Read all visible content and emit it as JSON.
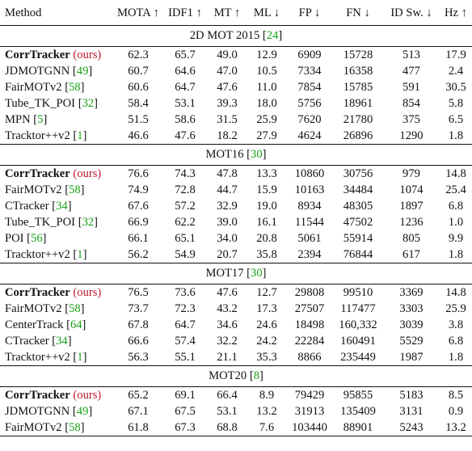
{
  "columns": [
    "Method",
    "MOTA ↑",
    "IDF1 ↑",
    "MT ↑",
    "ML ↓",
    "FP ↓",
    "FN ↓",
    "ID Sw. ↓",
    "Hz ↑"
  ],
  "sections": [
    {
      "title": "2D MOT 2015",
      "ref": "24",
      "rows": [
        {
          "method": "CorrTracker",
          "method_bold": true,
          "suffix": "(ours)",
          "values": [
            "62.3",
            "65.7",
            "49.0",
            "12.9",
            "6909",
            "15728",
            "513",
            "17.9"
          ],
          "bold": [
            0,
            1,
            2,
            5
          ]
        },
        {
          "method": "JDMOTGNN",
          "ref": "49",
          "values": [
            "60.7",
            "64.6",
            "47.0",
            "10.5",
            "7334",
            "16358",
            "477",
            "2.4"
          ],
          "bold": [
            3
          ]
        },
        {
          "method": "FairMOTv2",
          "ref": "58",
          "values": [
            "60.6",
            "64.7",
            "47.6",
            "11.0",
            "7854",
            "15785",
            "591",
            "30.5"
          ],
          "bold": [
            7
          ]
        },
        {
          "method": "Tube_TK_POI",
          "ref": "32",
          "values": [
            "58.4",
            "53.1",
            "39.3",
            "18.0",
            "5756",
            "18961",
            "854",
            "5.8"
          ],
          "bold": []
        },
        {
          "method": "MPN",
          "ref": "5",
          "values": [
            "51.5",
            "58.6",
            "31.5",
            "25.9",
            "7620",
            "21780",
            "375",
            "6.5"
          ],
          "bold": [
            6
          ]
        },
        {
          "method": "Tracktor++v2",
          "ref": "1",
          "values": [
            "46.6",
            "47.6",
            "18.2",
            "27.9",
            "4624",
            "26896",
            "1290",
            "1.8"
          ],
          "bold": [
            4
          ]
        }
      ]
    },
    {
      "title": "MOT16",
      "ref": "30",
      "rows": [
        {
          "method": "CorrTracker",
          "method_bold": true,
          "suffix": "(ours)",
          "values": [
            "76.6",
            "74.3",
            "47.8",
            "13.3",
            "10860",
            "30756",
            "979",
            "14.8"
          ],
          "bold": [
            0,
            1,
            2,
            3,
            5
          ]
        },
        {
          "method": "FairMOTv2",
          "ref": "58",
          "values": [
            "74.9",
            "72.8",
            "44.7",
            "15.9",
            "10163",
            "34484",
            "1074",
            "25.4"
          ],
          "bold": [
            7
          ]
        },
        {
          "method": "CTracker",
          "ref": "34",
          "values": [
            "67.6",
            "57.2",
            "32.9",
            "19.0",
            "8934",
            "48305",
            "1897",
            "6.8"
          ],
          "bold": []
        },
        {
          "method": "Tube_TK_POI",
          "ref": "32",
          "values": [
            "66.9",
            "62.2",
            "39.0",
            "16.1",
            "11544",
            "47502",
            "1236",
            "1.0"
          ],
          "bold": []
        },
        {
          "method": "POI",
          "ref": "56",
          "values": [
            "66.1",
            "65.1",
            "34.0",
            "20.8",
            "5061",
            "55914",
            "805",
            "9.9"
          ],
          "bold": []
        },
        {
          "method": "Tracktor++v2",
          "ref": "1",
          "values": [
            "56.2",
            "54.9",
            "20.7",
            "35.8",
            "2394",
            "76844",
            "617",
            "1.8"
          ],
          "bold": [
            4,
            6
          ]
        }
      ]
    },
    {
      "title": "MOT17",
      "ref": "30",
      "rows": [
        {
          "method": "CorrTracker",
          "method_bold": true,
          "suffix": "(ours)",
          "values": [
            "76.5",
            "73.6",
            "47.6",
            "12.7",
            "29808",
            "99510",
            "3369",
            "14.8"
          ],
          "bold": [
            0,
            1,
            2,
            3,
            5
          ]
        },
        {
          "method": "FairMOTv2",
          "ref": "58",
          "values": [
            "73.7",
            "72.3",
            "43.2",
            "17.3",
            "27507",
            "117477",
            "3303",
            "25.9"
          ],
          "bold": [
            7
          ]
        },
        {
          "method": "CenterTrack",
          "ref": "64",
          "values": [
            "67.8",
            "64.7",
            "34.6",
            "24.6",
            "18498",
            "160,332",
            "3039",
            "3.8"
          ],
          "bold": []
        },
        {
          "method": "CTracker",
          "ref": "34",
          "values": [
            "66.6",
            "57.4",
            "32.2",
            "24.2",
            "22284",
            "160491",
            "5529",
            "6.8"
          ],
          "bold": []
        },
        {
          "method": "Tracktor++v2",
          "ref": "1",
          "values": [
            "56.3",
            "55.1",
            "21.1",
            "35.3",
            "8866",
            "235449",
            "1987",
            "1.8"
          ],
          "bold": [
            4,
            6
          ]
        }
      ]
    },
    {
      "title": "MOT20",
      "ref": "8",
      "rows": [
        {
          "method": "CorrTracker",
          "method_bold": true,
          "suffix": "(ours)",
          "values": [
            "65.2",
            "69.1",
            "66.4",
            "8.9",
            "79429",
            "95855",
            "5183",
            "8.5"
          ],
          "bold": [
            1
          ]
        },
        {
          "method": "JDMOTGNN",
          "ref": "49",
          "values": [
            "67.1",
            "67.5",
            "53.1",
            "13.2",
            "31913",
            "135409",
            "3131",
            "0.9"
          ],
          "bold": [
            0,
            4,
            6
          ]
        },
        {
          "method": "FairMOTv2",
          "ref": "58",
          "values": [
            "61.8",
            "67.3",
            "68.8",
            "7.6",
            "103440",
            "88901",
            "5243",
            "13.2"
          ],
          "bold": [
            2,
            3,
            5,
            7
          ]
        }
      ]
    }
  ]
}
